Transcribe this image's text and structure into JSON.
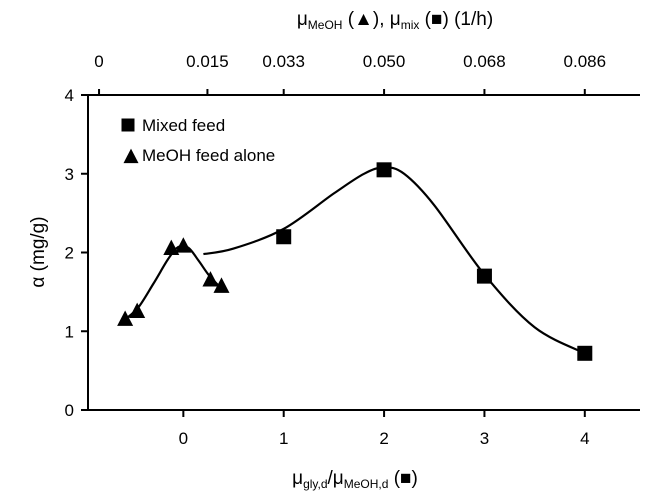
{
  "chart_data": {
    "type": "scatter",
    "title": "",
    "xlabel": "μgly,d/μMeOH,d (■)",
    "xlabel_parts": {
      "base": "μ",
      "sub1": "gly,d",
      "mid": "/μ",
      "sub2": "MeOH,d",
      "suffix": " (■)"
    },
    "ylabel": "α (mg/g)",
    "x2label": "μMeOH (▲), μmix (■) (1/h)",
    "x2label_parts": {
      "p1": "μ",
      "s1": "MeOH",
      "p2": " (▲),  μ",
      "s2": "mix",
      "p3": " (■) (1/h)"
    },
    "xlim": [
      -0.95,
      4.55
    ],
    "ylim": [
      0,
      4
    ],
    "x_ticks": [
      "0",
      "1",
      "2",
      "3",
      "4"
    ],
    "y_ticks": [
      "0",
      "1",
      "2",
      "3",
      "4"
    ],
    "x2_ticks": [
      "0",
      "0.015",
      "0.033",
      "0.050",
      "0.068",
      "0.086"
    ],
    "grid": false,
    "legend_position": "top-left",
    "series": [
      {
        "name": "Mixed feed",
        "marker": "square",
        "color": "#000000",
        "points": [
          [
            1.0,
            2.2
          ],
          [
            2.0,
            3.05
          ],
          [
            3.0,
            1.7
          ],
          [
            4.0,
            0.72
          ]
        ],
        "fit_curve": [
          [
            0.2,
            1.98
          ],
          [
            0.5,
            2.05
          ],
          [
            1.0,
            2.3
          ],
          [
            1.5,
            2.75
          ],
          [
            1.8,
            3.0
          ],
          [
            2.0,
            3.08
          ],
          [
            2.2,
            3.0
          ],
          [
            2.5,
            2.6
          ],
          [
            3.0,
            1.72
          ],
          [
            3.5,
            1.05
          ],
          [
            4.0,
            0.72
          ]
        ]
      },
      {
        "name": "MeOH feed alone",
        "marker": "triangle",
        "color": "#000000",
        "points": [
          [
            -0.58,
            1.15
          ],
          [
            -0.46,
            1.25
          ],
          [
            -0.12,
            2.05
          ],
          [
            0.0,
            2.08
          ],
          [
            0.27,
            1.65
          ],
          [
            0.38,
            1.57
          ]
        ],
        "fit_curve": [
          [
            -0.58,
            1.15
          ],
          [
            -0.45,
            1.3
          ],
          [
            -0.3,
            1.6
          ],
          [
            -0.15,
            1.92
          ],
          [
            -0.05,
            2.07
          ],
          [
            0.05,
            2.06
          ],
          [
            0.15,
            1.9
          ],
          [
            0.25,
            1.72
          ],
          [
            0.35,
            1.58
          ]
        ]
      }
    ]
  }
}
